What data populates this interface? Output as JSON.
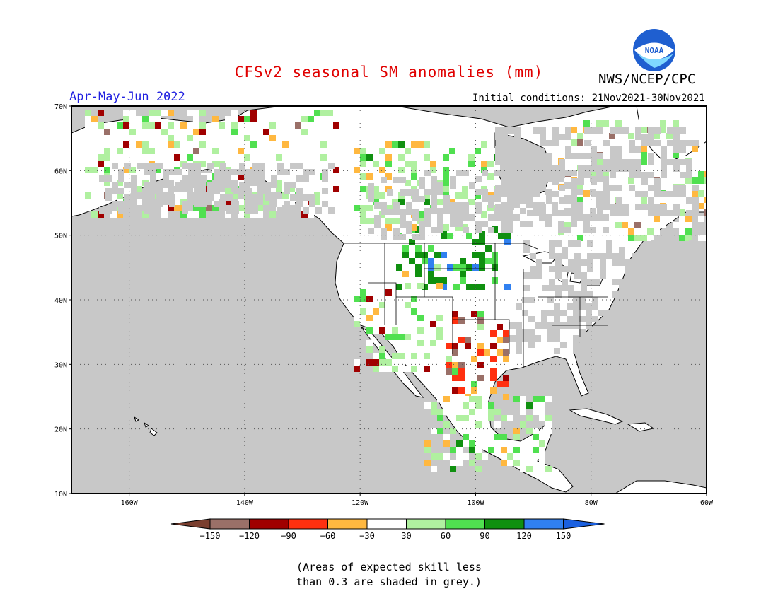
{
  "title": "CFSv2 seasonal SM anomalies (mm)",
  "agency": "NWS/NCEP/CPC",
  "logo_text": "NOAA",
  "season": "Apr-May-Jun 2022",
  "initial_conditions": "Initial conditions: 21Nov2021-30Nov2021",
  "map": {
    "lat_labels": [
      "70N",
      "60N",
      "50N",
      "40N",
      "30N",
      "20N",
      "10N"
    ],
    "lat_values": [
      70,
      60,
      50,
      40,
      30,
      20,
      10
    ],
    "lon_labels": [
      "160W",
      "140W",
      "120W",
      "100W",
      "80W",
      "60W"
    ],
    "lon_values": [
      -160,
      -140,
      -120,
      -100,
      -80,
      -60
    ],
    "lon_range": [
      -170,
      -60
    ],
    "lat_range": [
      10,
      70
    ]
  },
  "legend": {
    "labels": [
      "-150",
      "-120",
      "-90",
      "-60",
      "-30",
      "30",
      "60",
      "90",
      "120",
      "150"
    ],
    "colors": [
      "#7a3e2e",
      "#9a7068",
      "#a00000",
      "#ff3010",
      "#ffb840",
      "#ffffff",
      "#b0f0a0",
      "#50e050",
      "#109010",
      "#3080f0",
      "#1a60e0"
    ]
  },
  "skill_note_line1": "(Areas of expected skill less",
  "skill_note_line2": "than 0.3 are shaded in grey.)"
}
